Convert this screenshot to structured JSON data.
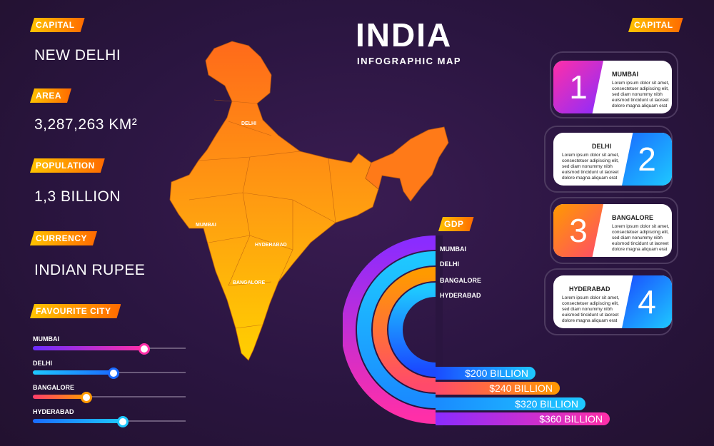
{
  "header": {
    "title": "INDIA",
    "subtitle": "INFOGRAPHIC MAP"
  },
  "facts": {
    "capital_tag": "CAPITAL",
    "capital": "NEW DELHI",
    "area_tag": "AREA",
    "area": "3,287,263 KM²",
    "population_tag": "POPULATION",
    "population": "1,3 BILLION",
    "currency_tag": "CURRENCY",
    "currency": "INDIAN RUPEE"
  },
  "favourite": {
    "tag": "FAVOURITE CITY",
    "items": [
      {
        "label": "MUMBAI",
        "level": 0.73,
        "color_from": "#6b2cff",
        "color_to": "#ff2fa8"
      },
      {
        "label": "DELHI",
        "level": 0.53,
        "color_from": "#1ec8ff",
        "color_to": "#1a6bff"
      },
      {
        "label": "BANGALORE",
        "level": 0.35,
        "color_from": "#ff3d6b",
        "color_to": "#ff9a00"
      },
      {
        "label": "HYDERABAD",
        "level": 0.59,
        "color_from": "#1a6bff",
        "color_to": "#1ec8ff"
      }
    ]
  },
  "map": {
    "cities": [
      {
        "name": "DELHI"
      },
      {
        "name": "MUMBAI"
      },
      {
        "name": "HYDERABAD"
      },
      {
        "name": "BANGALORE"
      }
    ]
  },
  "gdp": {
    "tag": "GDP",
    "cities": [
      "MUMBAI",
      "DELHI",
      "BANGALORE",
      "HYDERABAD"
    ],
    "values": [
      "$200 BILLION",
      "$240 BILLION",
      "$320 BILLION",
      "$360 BILLION"
    ]
  },
  "capital_panel": {
    "tag": "CAPITAL",
    "lorem": "Lorem ipsum dolor sit amet, consectetuer adipiscing elit, sed diam nonummy nibh euismod tincidunt ut laoreet dolore magna aliquam erat",
    "cards": [
      {
        "num": "1",
        "city": "MUMBAI"
      },
      {
        "num": "2",
        "city": "DELHI"
      },
      {
        "num": "3",
        "city": "BANGALORE"
      },
      {
        "num": "4",
        "city": "HYDERABAD"
      }
    ]
  }
}
